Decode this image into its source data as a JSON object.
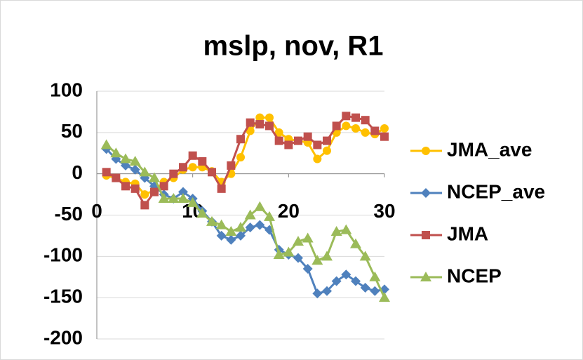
{
  "chart_data": {
    "type": "line",
    "title": "mslp, nov, R1",
    "x": [
      1,
      2,
      3,
      4,
      5,
      6,
      7,
      8,
      9,
      10,
      11,
      12,
      13,
      14,
      15,
      16,
      17,
      18,
      19,
      20,
      21,
      22,
      23,
      24,
      25,
      26,
      27,
      28,
      29,
      30
    ],
    "series": [
      {
        "name": "JMA_ave",
        "color": "#ffc000",
        "marker": "circle",
        "values": [
          -2,
          -5,
          -10,
          -12,
          -25,
          -20,
          -10,
          -5,
          5,
          8,
          8,
          3,
          -10,
          0,
          20,
          52,
          68,
          68,
          50,
          42,
          40,
          38,
          18,
          28,
          50,
          58,
          55,
          50,
          48,
          55
        ]
      },
      {
        "name": "NCEP_ave",
        "color": "#4f81bd",
        "marker": "diamond",
        "values": [
          30,
          18,
          10,
          5,
          -5,
          -15,
          -25,
          -30,
          -22,
          -30,
          -45,
          -58,
          -75,
          -80,
          -75,
          -65,
          -62,
          -68,
          -92,
          -98,
          -102,
          -115,
          -145,
          -142,
          -130,
          -122,
          -130,
          -138,
          -142,
          -140
        ]
      },
      {
        "name": "JMA",
        "color": "#c0504d",
        "marker": "square",
        "values": [
          2,
          -5,
          -15,
          -18,
          -38,
          -22,
          -15,
          0,
          8,
          22,
          15,
          2,
          -18,
          10,
          42,
          62,
          60,
          58,
          40,
          35,
          40,
          45,
          35,
          40,
          58,
          70,
          68,
          65,
          52,
          45
        ]
      },
      {
        "name": "NCEP",
        "color": "#9bbb59",
        "marker": "triangle",
        "values": [
          35,
          25,
          18,
          15,
          2,
          -5,
          -30,
          -30,
          -30,
          -35,
          -48,
          -58,
          -62,
          -70,
          -65,
          -50,
          -40,
          -52,
          -98,
          -95,
          -82,
          -78,
          -105,
          -100,
          -70,
          -68,
          -85,
          -100,
          -125,
          -150
        ]
      }
    ],
    "xlim": [
      0,
      30
    ],
    "xticks": [
      0,
      10,
      20,
      30
    ],
    "ylim": [
      -200,
      100
    ],
    "yticks": [
      -200,
      -150,
      -100,
      -50,
      0,
      50,
      100
    ],
    "grid": true,
    "legend": "right"
  }
}
